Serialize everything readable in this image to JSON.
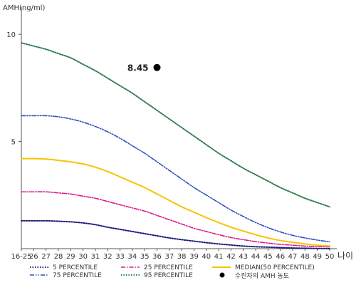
{
  "chart_data": {
    "type": "line",
    "ylabel": "AMH(ng/ml)",
    "xlabel": "나이",
    "categories": [
      "16-25",
      "26",
      "27",
      "28",
      "29",
      "30",
      "31",
      "32",
      "33",
      "34",
      "35",
      "36",
      "37",
      "38",
      "39",
      "40",
      "41",
      "42",
      "43",
      "44",
      "45",
      "46",
      "47",
      "48",
      "49",
      "50"
    ],
    "ylim": [
      0,
      11
    ],
    "y_ticks": [
      5,
      10
    ],
    "grid": false,
    "legend_position": "bottom",
    "series": [
      {
        "name": "5 PERCENTILE",
        "color": "#1a1a7a",
        "dash": "dotted",
        "values": [
          1.3,
          1.3,
          1.3,
          1.28,
          1.25,
          1.2,
          1.12,
          1.0,
          0.9,
          0.8,
          0.7,
          0.6,
          0.5,
          0.42,
          0.35,
          0.28,
          0.22,
          0.17,
          0.12,
          0.09,
          0.07,
          0.05,
          0.03,
          0.02,
          0.01,
          0.0
        ]
      },
      {
        "name": "25 PERCENTILE",
        "color": "#e0198a",
        "dash": "dashdot",
        "values": [
          2.65,
          2.65,
          2.65,
          2.6,
          2.55,
          2.45,
          2.35,
          2.2,
          2.05,
          1.9,
          1.75,
          1.55,
          1.35,
          1.15,
          0.95,
          0.8,
          0.65,
          0.52,
          0.42,
          0.33,
          0.26,
          0.2,
          0.16,
          0.12,
          0.1,
          0.08
        ]
      },
      {
        "name": "MEDIAN(50 PERCENTILE)",
        "color": "#f5c400",
        "dash": "solid",
        "values": [
          4.2,
          4.2,
          4.18,
          4.12,
          4.05,
          3.95,
          3.8,
          3.6,
          3.35,
          3.1,
          2.85,
          2.55,
          2.25,
          1.95,
          1.7,
          1.45,
          1.22,
          1.0,
          0.82,
          0.65,
          0.5,
          0.38,
          0.3,
          0.22,
          0.16,
          0.12
        ]
      },
      {
        "name": "75 PERCENTILE",
        "color": "#2e4fbf",
        "dash": "dashdotdot",
        "values": [
          6.2,
          6.2,
          6.2,
          6.15,
          6.05,
          5.9,
          5.7,
          5.45,
          5.15,
          4.8,
          4.45,
          4.05,
          3.65,
          3.25,
          2.85,
          2.5,
          2.15,
          1.8,
          1.5,
          1.22,
          0.98,
          0.78,
          0.62,
          0.5,
          0.4,
          0.32
        ]
      },
      {
        "name": "95 PERCENTILE",
        "color": "#2e7d4f",
        "dash": "dotted",
        "values": [
          9.6,
          9.45,
          9.3,
          9.1,
          8.9,
          8.6,
          8.3,
          7.95,
          7.6,
          7.25,
          6.85,
          6.45,
          6.05,
          5.65,
          5.25,
          4.85,
          4.45,
          4.1,
          3.75,
          3.45,
          3.15,
          2.85,
          2.6,
          2.35,
          2.15,
          1.95
        ]
      }
    ],
    "highlight": {
      "name": "수진자의 AMH 농도",
      "category": "36",
      "value": 8.45,
      "label": "8.45",
      "color": "#000000"
    }
  }
}
